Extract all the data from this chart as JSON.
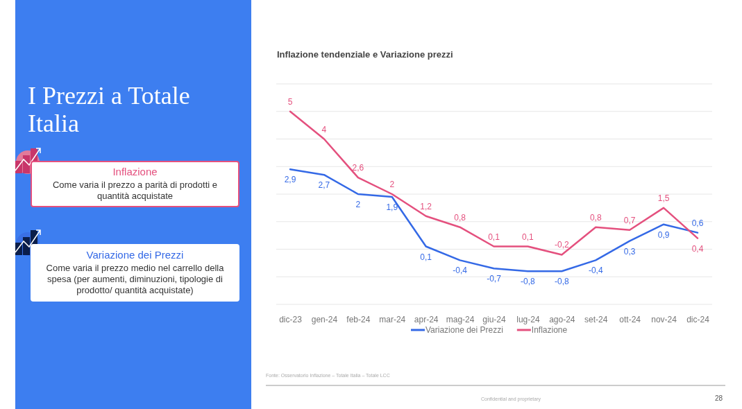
{
  "chart_data": {
    "type": "line",
    "title": "Inflazione tendenziale e Variazione prezzi",
    "categories": [
      "dic-23",
      "gen-24",
      "feb-24",
      "mar-24",
      "apr-24",
      "mag-24",
      "giu-24",
      "lug-24",
      "ago-24",
      "set-24",
      "ott-24",
      "nov-24",
      "dic-24"
    ],
    "series": [
      {
        "name": "Variazione dei Prezzi",
        "color": "#3469e6",
        "values": [
          2.9,
          2.7,
          2,
          1.9,
          0.1,
          -0.4,
          -0.7,
          -0.8,
          -0.8,
          -0.4,
          0.3,
          0.9,
          0.6
        ],
        "value_labels": [
          "2,9",
          "2,7",
          "2",
          "1,9",
          "0,1",
          "-0,4",
          "-0,7",
          "-0,8",
          "-0,8",
          "-0,4",
          "0,3",
          "0,9",
          "0,6"
        ]
      },
      {
        "name": "Inflazione",
        "color": "#e4507e",
        "values": [
          5,
          4,
          2.6,
          2,
          1.2,
          0.8,
          0.1,
          0.1,
          -0.2,
          0.8,
          0.7,
          1.5,
          0.4
        ],
        "value_labels": [
          "5",
          "4",
          "2,6",
          "2",
          "1,2",
          "0,8",
          "0,1",
          "0,1",
          "-0,2",
          "0,8",
          "0,7",
          "1,5",
          "0,4"
        ]
      }
    ],
    "ylim": [
      -2,
      6
    ],
    "yticks": [
      {
        "value": -2,
        "label": null
      },
      {
        "value": -1,
        "label": null
      },
      {
        "value": 0,
        "label": null
      },
      {
        "value": 1,
        "label": null
      },
      {
        "value": 2,
        "label": null
      },
      {
        "value": 3,
        "label": null
      },
      {
        "value": 4,
        "label": null
      },
      {
        "value": 5,
        "label": null
      },
      {
        "value": 6,
        "label": null
      }
    ],
    "tick_labels": "x",
    "grid": "y",
    "legend": "bottom",
    "marker": "none",
    "line_style": "solid",
    "annotations": [
      "I Prezzi a Totale Italia",
      "Inflazione",
      "Come varia il prezzo a parità di prodotti e quantità acquistate",
      "Variazione dei Prezzi",
      "Come varia il prezzo medio nel carrello della spesa (per aumenti, diminuzioni, tipologie di prodotto/ quantità acquistate)",
      "Fonte: Osservatorio Inflazione – Totale Italia – Totale LCC",
      "Confidential and proprietary",
      "28"
    ]
  }
}
